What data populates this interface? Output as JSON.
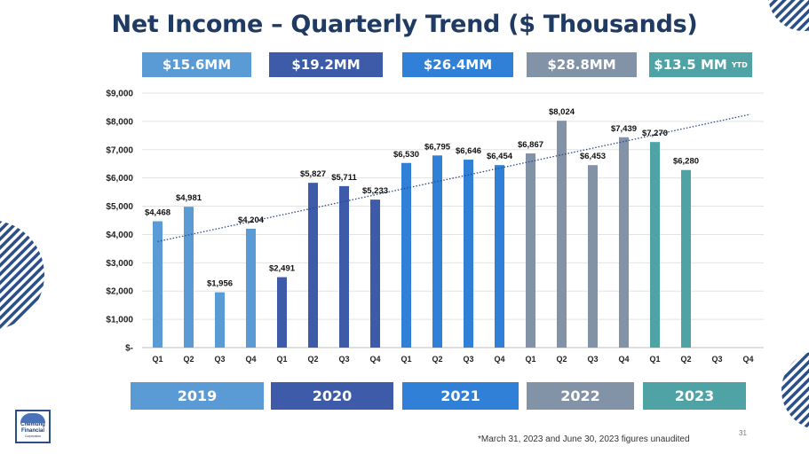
{
  "header": {
    "title": "Net Income – Quarterly Trend ($ Thousands)"
  },
  "annual_totals": [
    {
      "label": "$15.6MM",
      "color": "#5b9bd5"
    },
    {
      "label": "$19.2MM",
      "color": "#3d5ba8"
    },
    {
      "label": "$26.4MM",
      "color": "#2f80d6"
    },
    {
      "label": "$28.8MM",
      "color": "#8393a7"
    },
    {
      "label": "$13.5 MM",
      "suffix": "YTD",
      "color": "#4fa3a5"
    }
  ],
  "years": [
    {
      "label": "2019",
      "color": "#5b9bd5"
    },
    {
      "label": "2020",
      "color": "#3d5ba8"
    },
    {
      "label": "2021",
      "color": "#2f80d6"
    },
    {
      "label": "2022",
      "color": "#8393a7"
    },
    {
      "label": "2023",
      "color": "#4fa3a5"
    }
  ],
  "chart_data": {
    "type": "bar",
    "title": "Net Income – Quarterly Trend ($ Thousands)",
    "xlabel": "",
    "ylabel": "",
    "ylim": [
      0,
      9000
    ],
    "yticks": [
      0,
      1000,
      2000,
      3000,
      4000,
      5000,
      6000,
      7000,
      8000,
      9000
    ],
    "ytick_labels": [
      "$-",
      "$1,000",
      "$2,000",
      "$3,000",
      "$4,000",
      "$5,000",
      "$6,000",
      "$7,000",
      "$8,000",
      "$9,000"
    ],
    "categories": [
      "Q1",
      "Q2",
      "Q3",
      "Q4",
      "Q1",
      "Q2",
      "Q3",
      "Q4",
      "Q1",
      "Q2",
      "Q3",
      "Q4",
      "Q1",
      "Q2",
      "Q3",
      "Q4",
      "Q1",
      "Q2",
      "Q3",
      "Q4"
    ],
    "values": [
      4468,
      4981,
      1956,
      4204,
      2491,
      5827,
      5711,
      5233,
      6530,
      6795,
      6646,
      6454,
      6867,
      8024,
      6453,
      7439,
      7270,
      6280,
      null,
      null
    ],
    "value_labels": [
      "$4,468",
      "$4,981",
      "$1,956",
      "$4,204",
      "$2,491",
      "$5,827",
      "$5,711",
      "$5,233",
      "$6,530",
      "$6,795",
      "$6,646",
      "$6,454",
      "$6,867",
      "$8,024",
      "$6,453",
      "$7,439",
      "$7,270",
      "$6,280",
      "",
      ""
    ],
    "group_colors": [
      "#5b9bd5",
      "#3d5ba8",
      "#2f80d6",
      "#8393a7",
      "#4fa3a5"
    ],
    "trendline": {
      "type": "linear",
      "start": 3750,
      "end": 8250,
      "color": "#2e4a8a"
    },
    "grid": true
  },
  "footer": {
    "note": "*March 31, 2023 and June 30, 2023 figures unaudited",
    "page_number": "31",
    "logo_line1": "Chemung",
    "logo_line2": "Financial",
    "logo_line3": "Corporation"
  }
}
